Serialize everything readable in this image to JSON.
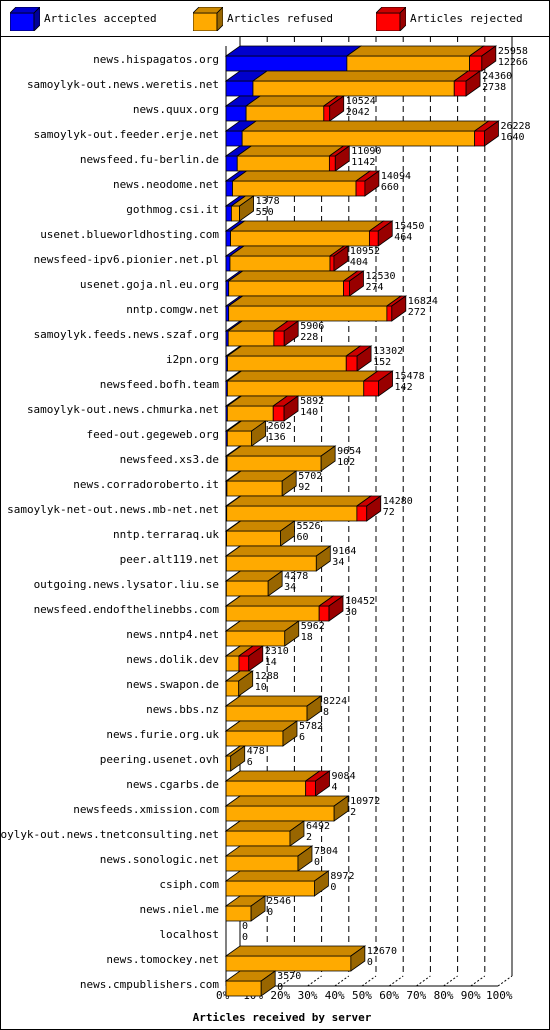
{
  "legend": {
    "accepted": {
      "label": "Articles accepted",
      "color": "#0000ff"
    },
    "refused": {
      "label": "Articles refused",
      "color": "#ffaa00"
    },
    "rejected": {
      "label": "Articles rejected",
      "color": "#ff0000"
    }
  },
  "chart_data": {
    "type": "bar",
    "orientation": "horizontal",
    "stacked": true,
    "xlabel": "Articles received by server",
    "xticks": [
      "0%",
      "10%",
      "20%",
      "30%",
      "40%",
      "50%",
      "60%",
      "70%",
      "80%",
      "90%",
      "100%"
    ],
    "grid": "vertical dashed",
    "legend_position": "top",
    "scale_max": 27600,
    "categories": [
      "news.hispagatos.org",
      "samoylyk-out.news.weretis.net",
      "news.quux.org",
      "samoylyk-out.feeder.erje.net",
      "newsfeed.fu-berlin.de",
      "news.neodome.net",
      "gothmog.csi.it",
      "usenet.blueworldhosting.com",
      "newsfeed-ipv6.pionier.net.pl",
      "usenet.goja.nl.eu.org",
      "nntp.comgw.net",
      "samoylyk.feeds.news.szaf.org",
      "i2pn.org",
      "newsfeed.bofh.team",
      "samoylyk-out.news.chmurka.net",
      "feed-out.gegeweb.org",
      "newsfeed.xs3.de",
      "news.corradoroberto.it",
      "samoylyk-net-out.news.mb-net.net",
      "nntp.terraraq.uk",
      "peer.alt119.net",
      "outgoing.news.lysator.liu.se",
      "newsfeed.endofthelinebbs.com",
      "news.nntp4.net",
      "news.dolik.dev",
      "news.swapon.de",
      "news.bbs.nz",
      "news.furie.org.uk",
      "peering.usenet.ovh",
      "news.cgarbs.de",
      "newsfeeds.xmission.com",
      "samoylyk-out.news.tnetconsulting.net",
      "news.sonologic.net",
      "csiph.com",
      "news.niel.me",
      "localhost",
      "news.tomockey.net",
      "news.cmpublishers.com"
    ],
    "label_top": [
      25958,
      24360,
      10524,
      26228,
      11090,
      14094,
      1378,
      15450,
      10952,
      12530,
      16824,
      5906,
      13302,
      15478,
      5892,
      2602,
      9654,
      5702,
      14280,
      5526,
      9164,
      4278,
      10452,
      5962,
      2310,
      1288,
      8224,
      5782,
      478,
      9084,
      10972,
      6492,
      7304,
      8972,
      2546,
      0,
      12670,
      3570
    ],
    "label_bottom": [
      12266,
      2738,
      2042,
      1640,
      1142,
      660,
      550,
      464,
      404,
      274,
      272,
      228,
      152,
      142,
      140,
      136,
      102,
      92,
      72,
      60,
      34,
      34,
      30,
      18,
      14,
      10,
      8,
      6,
      6,
      4,
      2,
      2,
      0,
      0,
      0,
      0,
      0,
      0
    ],
    "series": [
      {
        "name": "Articles accepted",
        "color": "#0000ff",
        "values": [
          12266,
          2738,
          2042,
          1640,
          1142,
          660,
          550,
          464,
          404,
          274,
          272,
          228,
          152,
          142,
          140,
          136,
          102,
          92,
          72,
          60,
          34,
          34,
          30,
          18,
          14,
          10,
          8,
          6,
          6,
          4,
          2,
          2,
          0,
          0,
          0,
          0,
          0,
          0
        ]
      },
      {
        "name": "Articles refused",
        "color": "#ffaa00",
        "values": [
          12450,
          20422,
          7882,
          23588,
          9348,
          12534,
          828,
          14086,
          10148,
          11656,
          16052,
          4628,
          12050,
          13836,
          4652,
          2466,
          9552,
          5610,
          13208,
          5466,
          9130,
          4244,
          9422,
          5944,
          1296,
          1278,
          8216,
          5776,
          472,
          8080,
          10970,
          6490,
          7304,
          8972,
          2546,
          0,
          12670,
          3570
        ]
      },
      {
        "name": "Articles rejected",
        "color": "#ff0000",
        "values": [
          1242,
          1200,
          600,
          1000,
          600,
          900,
          0,
          900,
          400,
          600,
          500,
          1050,
          1100,
          1500,
          1100,
          0,
          0,
          0,
          1000,
          0,
          0,
          0,
          1000,
          0,
          1000,
          0,
          0,
          0,
          0,
          1000,
          0,
          0,
          0,
          0,
          0,
          0,
          0,
          0
        ]
      }
    ]
  }
}
